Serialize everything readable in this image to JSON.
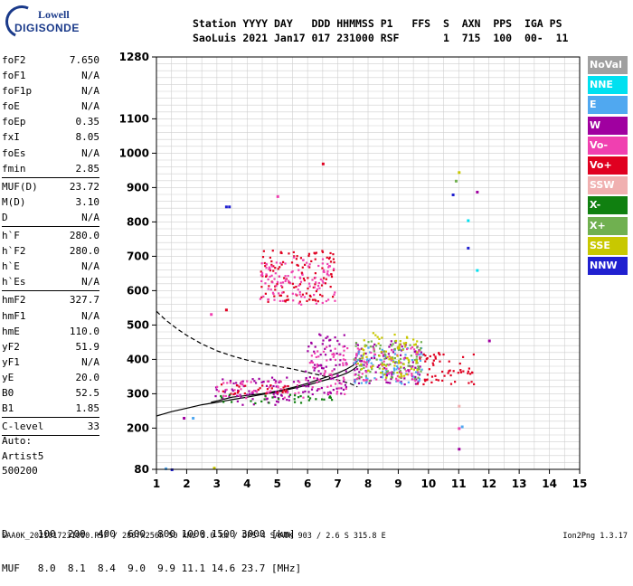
{
  "logo": {
    "line1": "Lowell",
    "line2": "DIGISONDE"
  },
  "header": {
    "line1": "Station YYYY DAY   DDD HHMMSS P1   FFS  S  AXN  PPS  IGA PS",
    "line2": "SaoLuis 2021 Jan17 017 231000 RSF       1  715  100  00-  11"
  },
  "params": [
    {
      "label": "foF2",
      "value": "7.650"
    },
    {
      "label": "foF1",
      "value": "N/A"
    },
    {
      "label": "foF1p",
      "value": "N/A"
    },
    {
      "label": "foE",
      "value": "N/A"
    },
    {
      "label": "foEp",
      "value": "0.35"
    },
    {
      "label": "fxI",
      "value": "8.05"
    },
    {
      "label": "foEs",
      "value": "N/A"
    },
    {
      "label": "fmin",
      "value": "2.85"
    },
    {
      "sep": true
    },
    {
      "label": "MUF(D)",
      "value": "23.72"
    },
    {
      "label": "M(D)",
      "value": "3.10"
    },
    {
      "label": "D",
      "value": "N/A"
    },
    {
      "sep": true
    },
    {
      "label": "h`F",
      "value": "280.0"
    },
    {
      "label": "h`F2",
      "value": "280.0"
    },
    {
      "label": "h`E",
      "value": "N/A"
    },
    {
      "label": "h`Es",
      "value": "N/A"
    },
    {
      "sep": true
    },
    {
      "label": "hmF2",
      "value": "327.7"
    },
    {
      "label": "hmF1",
      "value": "N/A"
    },
    {
      "label": "hmE",
      "value": "110.0"
    },
    {
      "label": "yF2",
      "value": "51.9"
    },
    {
      "label": "yF1",
      "value": "N/A"
    },
    {
      "label": "yE",
      "value": "20.0"
    },
    {
      "label": "B0",
      "value": "52.5"
    },
    {
      "label": "B1",
      "value": "1.85"
    },
    {
      "sep": true
    },
    {
      "label": "C-level",
      "value": "33"
    },
    {
      "sep": true
    }
  ],
  "auto": {
    "line1": "Auto:",
    "line2": "Artist5",
    "line3": "500200"
  },
  "dmuf": {
    "line1": "D     100  200  400  600  800 1000 1500 3000 [km]",
    "line2": "MUF   8.0  8.1  8.4  9.0  9.9 11.1 14.6 23.7 [MHz]"
  },
  "footer": "SAA0K_2021017231000.RSF / 280fx256h 50 kHz 5.0 km / DPS-4 SAA0K 903 / 2.6 S 315.8 E",
  "version": "Ion2Png 1.3.17",
  "legend": [
    {
      "label": "NoVal",
      "color": "#a0a0a0"
    },
    {
      "label": "NNE",
      "color": "#00e0f0"
    },
    {
      "label": "E",
      "color": "#50a8f0"
    },
    {
      "label": "W",
      "color": "#a000a0"
    },
    {
      "label": "Vo-",
      "color": "#f040b0"
    },
    {
      "label": "Vo+",
      "color": "#e00020"
    },
    {
      "label": "SSW",
      "color": "#f0b0b0"
    },
    {
      "label": "X-",
      "color": "#108010"
    },
    {
      "label": "X+",
      "color": "#70b050"
    },
    {
      "label": "SSE",
      "color": "#c8c800"
    },
    {
      "label": "NNW",
      "color": "#2020d0"
    }
  ],
  "chart_data": {
    "type": "scatter",
    "title": "",
    "xlabel": "",
    "ylabel": "",
    "xlim": [
      1,
      15
    ],
    "ylim": [
      80,
      1280
    ],
    "x_ticks": [
      1,
      2,
      3,
      4,
      5,
      6,
      7,
      8,
      9,
      10,
      11,
      12,
      13,
      14,
      15
    ],
    "y_ticks": [
      80,
      200,
      300,
      400,
      500,
      600,
      700,
      800,
      900,
      1000,
      1100,
      1280
    ],
    "grid": true,
    "traces": [
      {
        "name": "",
        "style": "solid",
        "x": [
          1.0,
          1.5,
          2.0,
          2.5,
          3.0,
          3.5,
          4.0,
          4.5,
          5.0,
          5.5,
          6.0,
          6.5,
          7.0,
          7.3,
          7.5,
          7.65
        ],
        "y": [
          235,
          248,
          258,
          268,
          275,
          283,
          290,
          298,
          305,
          315,
          325,
          338,
          350,
          360,
          370,
          380
        ]
      },
      {
        "name": "",
        "style": "dashed",
        "x": [
          1.0,
          1.3,
          1.7,
          2.0,
          2.5,
          3.0,
          3.5,
          4.0,
          4.5,
          5.0,
          5.5,
          6.0,
          6.5,
          7.0,
          7.4,
          7.65
        ],
        "y": [
          540,
          515,
          488,
          470,
          445,
          425,
          410,
          398,
          388,
          380,
          372,
          362,
          352,
          340,
          330,
          320
        ]
      },
      {
        "name": "",
        "style": "solid",
        "x": [
          2.8,
          3.5,
          4.0,
          4.5,
          5.0,
          5.5,
          6.0,
          6.5,
          7.0,
          7.3,
          7.5,
          7.65
        ],
        "y": [
          275,
          290,
          295,
          300,
          308,
          318,
          330,
          345,
          360,
          372,
          382,
          395
        ]
      }
    ],
    "scatter_clusters": [
      {
        "x": [
          2.9,
          5.9
        ],
        "y": [
          270,
          350
        ],
        "color": "#a000a0"
      },
      {
        "x": [
          2.9,
          5.9
        ],
        "y": [
          290,
          340
        ],
        "color": "#f040b0"
      },
      {
        "x": [
          3.0,
          5.8
        ],
        "y": [
          300,
          330
        ],
        "color": "#e00020"
      },
      {
        "x": [
          3.0,
          6.8
        ],
        "y": [
          275,
          300
        ],
        "color": "#108010"
      },
      {
        "x": [
          5.9,
          7.3
        ],
        "y": [
          300,
          480
        ],
        "color": "#a000a0"
      },
      {
        "x": [
          5.9,
          7.3
        ],
        "y": [
          300,
          440
        ],
        "color": "#f040b0"
      },
      {
        "x": [
          7.5,
          9.8
        ],
        "y": [
          330,
          460
        ],
        "color": "#a000a0"
      },
      {
        "x": [
          7.5,
          9.8
        ],
        "y": [
          330,
          440
        ],
        "color": "#50a8f0"
      },
      {
        "x": [
          7.5,
          9.8
        ],
        "y": [
          340,
          460
        ],
        "color": "#70b050"
      },
      {
        "x": [
          7.5,
          9.8
        ],
        "y": [
          340,
          440
        ],
        "color": "#f040b0"
      },
      {
        "x": [
          7.6,
          9.6
        ],
        "y": [
          350,
          480
        ],
        "color": "#c8c800"
      },
      {
        "x": [
          9.6,
          11.5
        ],
        "y": [
          330,
          430
        ],
        "color": "#e00020"
      },
      {
        "x": [
          4.4,
          6.9
        ],
        "y": [
          570,
          720
        ],
        "color": "#e00020"
      },
      {
        "x": [
          4.4,
          6.9
        ],
        "y": [
          560,
          700
        ],
        "color": "#f040b0"
      }
    ],
    "scatter_points": [
      {
        "x": 3.3,
        "y": 845,
        "color": "#2020d0"
      },
      {
        "x": 3.4,
        "y": 845,
        "color": "#2020d0"
      },
      {
        "x": 6.5,
        "y": 970,
        "color": "#e00020"
      },
      {
        "x": 5.0,
        "y": 875,
        "color": "#f040b0"
      },
      {
        "x": 10.8,
        "y": 880,
        "color": "#2020d0"
      },
      {
        "x": 11.0,
        "y": 945,
        "color": "#c8c800"
      },
      {
        "x": 11.3,
        "y": 805,
        "color": "#00e0f0"
      },
      {
        "x": 11.3,
        "y": 725,
        "color": "#2020d0"
      },
      {
        "x": 11.6,
        "y": 660,
        "color": "#00e0f0"
      },
      {
        "x": 11.6,
        "y": 888,
        "color": "#a000a0"
      },
      {
        "x": 10.9,
        "y": 920,
        "color": "#70b050"
      },
      {
        "x": 3.3,
        "y": 545,
        "color": "#e00020"
      },
      {
        "x": 2.8,
        "y": 532,
        "color": "#f040b0"
      },
      {
        "x": 2.2,
        "y": 230,
        "color": "#50a8f0"
      },
      {
        "x": 1.9,
        "y": 230,
        "color": "#a000a0"
      },
      {
        "x": 2.9,
        "y": 85,
        "color": "#c8c800"
      },
      {
        "x": 1.3,
        "y": 83,
        "color": "#50a8f0"
      },
      {
        "x": 1.5,
        "y": 80,
        "color": "#2020d0"
      },
      {
        "x": 11.0,
        "y": 140,
        "color": "#a000a0"
      },
      {
        "x": 11.0,
        "y": 200,
        "color": "#f040b0"
      },
      {
        "x": 11.1,
        "y": 205,
        "color": "#50a8f0"
      },
      {
        "x": 11.0,
        "y": 265,
        "color": "#f0b0b0"
      },
      {
        "x": 12.0,
        "y": 455,
        "color": "#a000a0"
      }
    ]
  }
}
